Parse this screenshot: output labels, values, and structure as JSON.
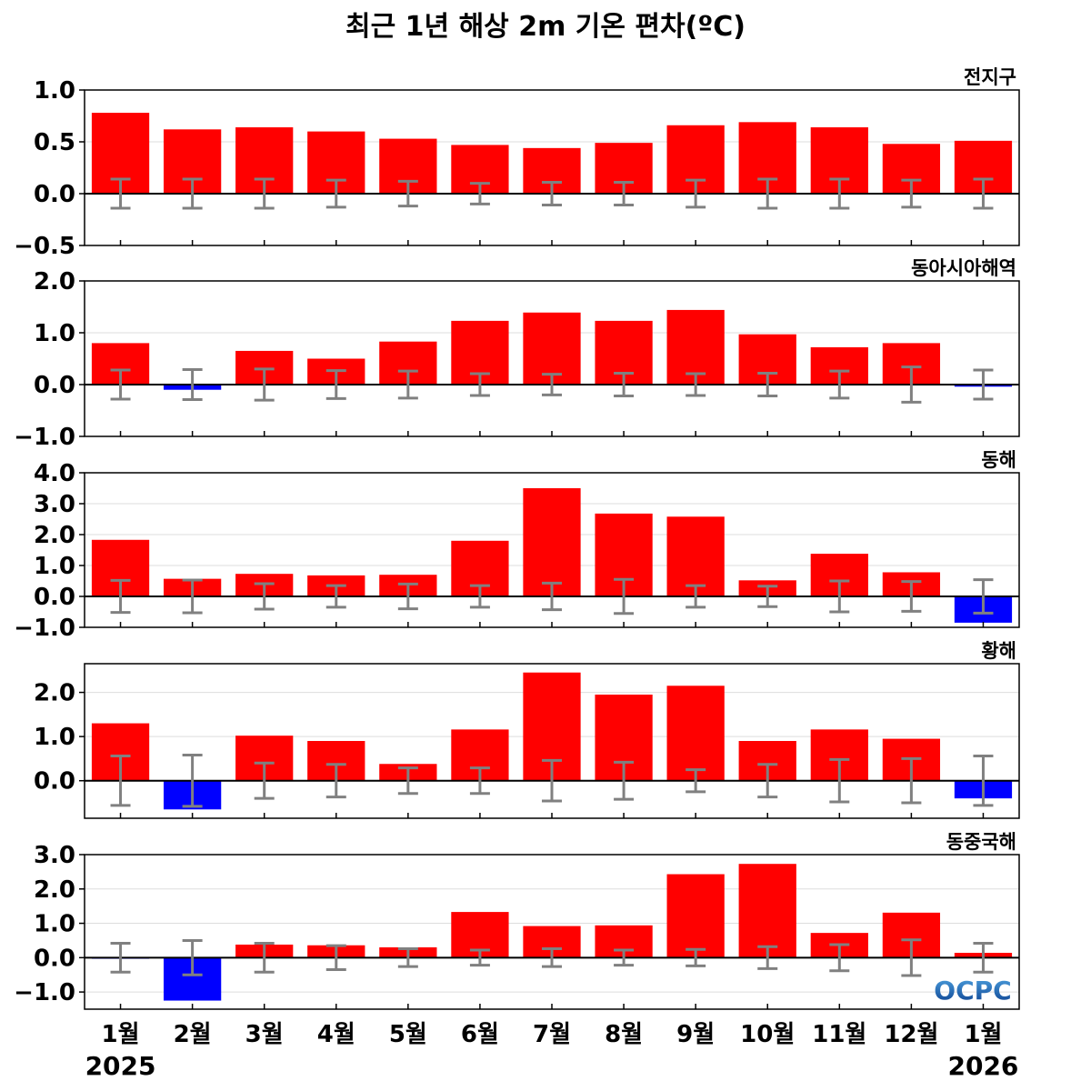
{
  "title": "최근 1년 해상 2m 기온 편차(ºC)",
  "logo": {
    "text": "OCPC",
    "color_top": "#4FA3E0",
    "color_bottom": "#0A3F8F"
  },
  "colors": {
    "positive": "#ff0000",
    "negative": "#0000ff",
    "error_bar": "#808080",
    "grid": "#dddddd"
  },
  "x_axis": {
    "months": [
      "1월",
      "2월",
      "3월",
      "4월",
      "5월",
      "6월",
      "7월",
      "8월",
      "9월",
      "10월",
      "11월",
      "12월",
      "1월"
    ],
    "year_start": "2025",
    "year_end": "2026"
  },
  "chart_data": [
    {
      "type": "bar",
      "region": "전지구",
      "categories": [
        "2025-01",
        "2025-02",
        "2025-03",
        "2025-04",
        "2025-05",
        "2025-06",
        "2025-07",
        "2025-08",
        "2025-09",
        "2025-10",
        "2025-11",
        "2025-12",
        "2026-01"
      ],
      "values": [
        0.78,
        0.62,
        0.64,
        0.6,
        0.53,
        0.47,
        0.44,
        0.49,
        0.66,
        0.69,
        0.64,
        0.48,
        0.51
      ],
      "error_bars": [
        0.14,
        0.14,
        0.14,
        0.13,
        0.12,
        0.1,
        0.11,
        0.11,
        0.13,
        0.14,
        0.14,
        0.13,
        0.14
      ],
      "ylim": [
        -0.5,
        1.0
      ],
      "yticks": [
        -0.5,
        0.0,
        0.5,
        1.0
      ],
      "ytick_labels": [
        "−0.5",
        "0.0",
        "0.5",
        "1.0"
      ],
      "grid": true
    },
    {
      "type": "bar",
      "region": "동아시아해역",
      "categories": [
        "2025-01",
        "2025-02",
        "2025-03",
        "2025-04",
        "2025-05",
        "2025-06",
        "2025-07",
        "2025-08",
        "2025-09",
        "2025-10",
        "2025-11",
        "2025-12",
        "2026-01"
      ],
      "values": [
        0.8,
        -0.1,
        0.65,
        0.5,
        0.83,
        1.23,
        1.39,
        1.23,
        1.44,
        0.97,
        0.72,
        0.8,
        -0.04
      ],
      "error_bars": [
        0.28,
        0.29,
        0.3,
        0.27,
        0.26,
        0.21,
        0.2,
        0.22,
        0.21,
        0.22,
        0.26,
        0.34,
        0.28
      ],
      "ylim": [
        -1.0,
        2.0
      ],
      "yticks": [
        -1.0,
        0.0,
        1.0,
        2.0
      ],
      "ytick_labels": [
        "−1.0",
        "0.0",
        "1.0",
        "2.0"
      ],
      "grid": true
    },
    {
      "type": "bar",
      "region": "동해",
      "categories": [
        "2025-01",
        "2025-02",
        "2025-03",
        "2025-04",
        "2025-05",
        "2025-06",
        "2025-07",
        "2025-08",
        "2025-09",
        "2025-10",
        "2025-11",
        "2025-12",
        "2026-01"
      ],
      "values": [
        1.83,
        0.57,
        0.73,
        0.68,
        0.7,
        1.8,
        3.5,
        2.68,
        2.58,
        0.52,
        1.38,
        0.78,
        -0.85
      ],
      "error_bars": [
        0.52,
        0.53,
        0.41,
        0.35,
        0.4,
        0.35,
        0.43,
        0.55,
        0.35,
        0.33,
        0.5,
        0.48,
        0.54
      ],
      "ylim": [
        -1.0,
        4.0
      ],
      "yticks": [
        -1.0,
        0.0,
        1.0,
        2.0,
        3.0,
        4.0
      ],
      "ytick_labels": [
        "−1.0",
        "0.0",
        "1.0",
        "2.0",
        "3.0",
        "4.0"
      ],
      "grid": true
    },
    {
      "type": "bar",
      "region": "황해",
      "categories": [
        "2025-01",
        "2025-02",
        "2025-03",
        "2025-04",
        "2025-05",
        "2025-06",
        "2025-07",
        "2025-08",
        "2025-09",
        "2025-10",
        "2025-11",
        "2025-12",
        "2026-01"
      ],
      "values": [
        1.3,
        -0.65,
        1.02,
        0.9,
        0.38,
        1.16,
        2.45,
        1.95,
        2.15,
        0.9,
        1.16,
        0.95,
        -0.4
      ],
      "error_bars": [
        0.56,
        0.58,
        0.4,
        0.37,
        0.29,
        0.29,
        0.46,
        0.42,
        0.25,
        0.37,
        0.48,
        0.5,
        0.56
      ],
      "ylim": [
        -0.85,
        2.65
      ],
      "yticks": [
        0.0,
        1.0,
        2.0
      ],
      "ytick_labels": [
        "0.0",
        "1.0",
        "2.0"
      ],
      "grid": true
    },
    {
      "type": "bar",
      "region": "동중국해",
      "categories": [
        "2025-01",
        "2025-02",
        "2025-03",
        "2025-04",
        "2025-05",
        "2025-06",
        "2025-07",
        "2025-08",
        "2025-09",
        "2025-10",
        "2025-11",
        "2025-12",
        "2026-01"
      ],
      "values": [
        -0.02,
        -1.25,
        0.38,
        0.36,
        0.3,
        1.33,
        0.92,
        0.94,
        2.43,
        2.73,
        0.72,
        1.31,
        0.14
      ],
      "error_bars": [
        0.42,
        0.5,
        0.42,
        0.35,
        0.26,
        0.22,
        0.26,
        0.22,
        0.24,
        0.32,
        0.38,
        0.52,
        0.42
      ],
      "ylim": [
        -1.5,
        3.0
      ],
      "yticks": [
        -1.0,
        0.0,
        1.0,
        2.0,
        3.0
      ],
      "ytick_labels": [
        "−1.0",
        "0.0",
        "1.0",
        "2.0",
        "3.0"
      ],
      "grid": true
    }
  ]
}
